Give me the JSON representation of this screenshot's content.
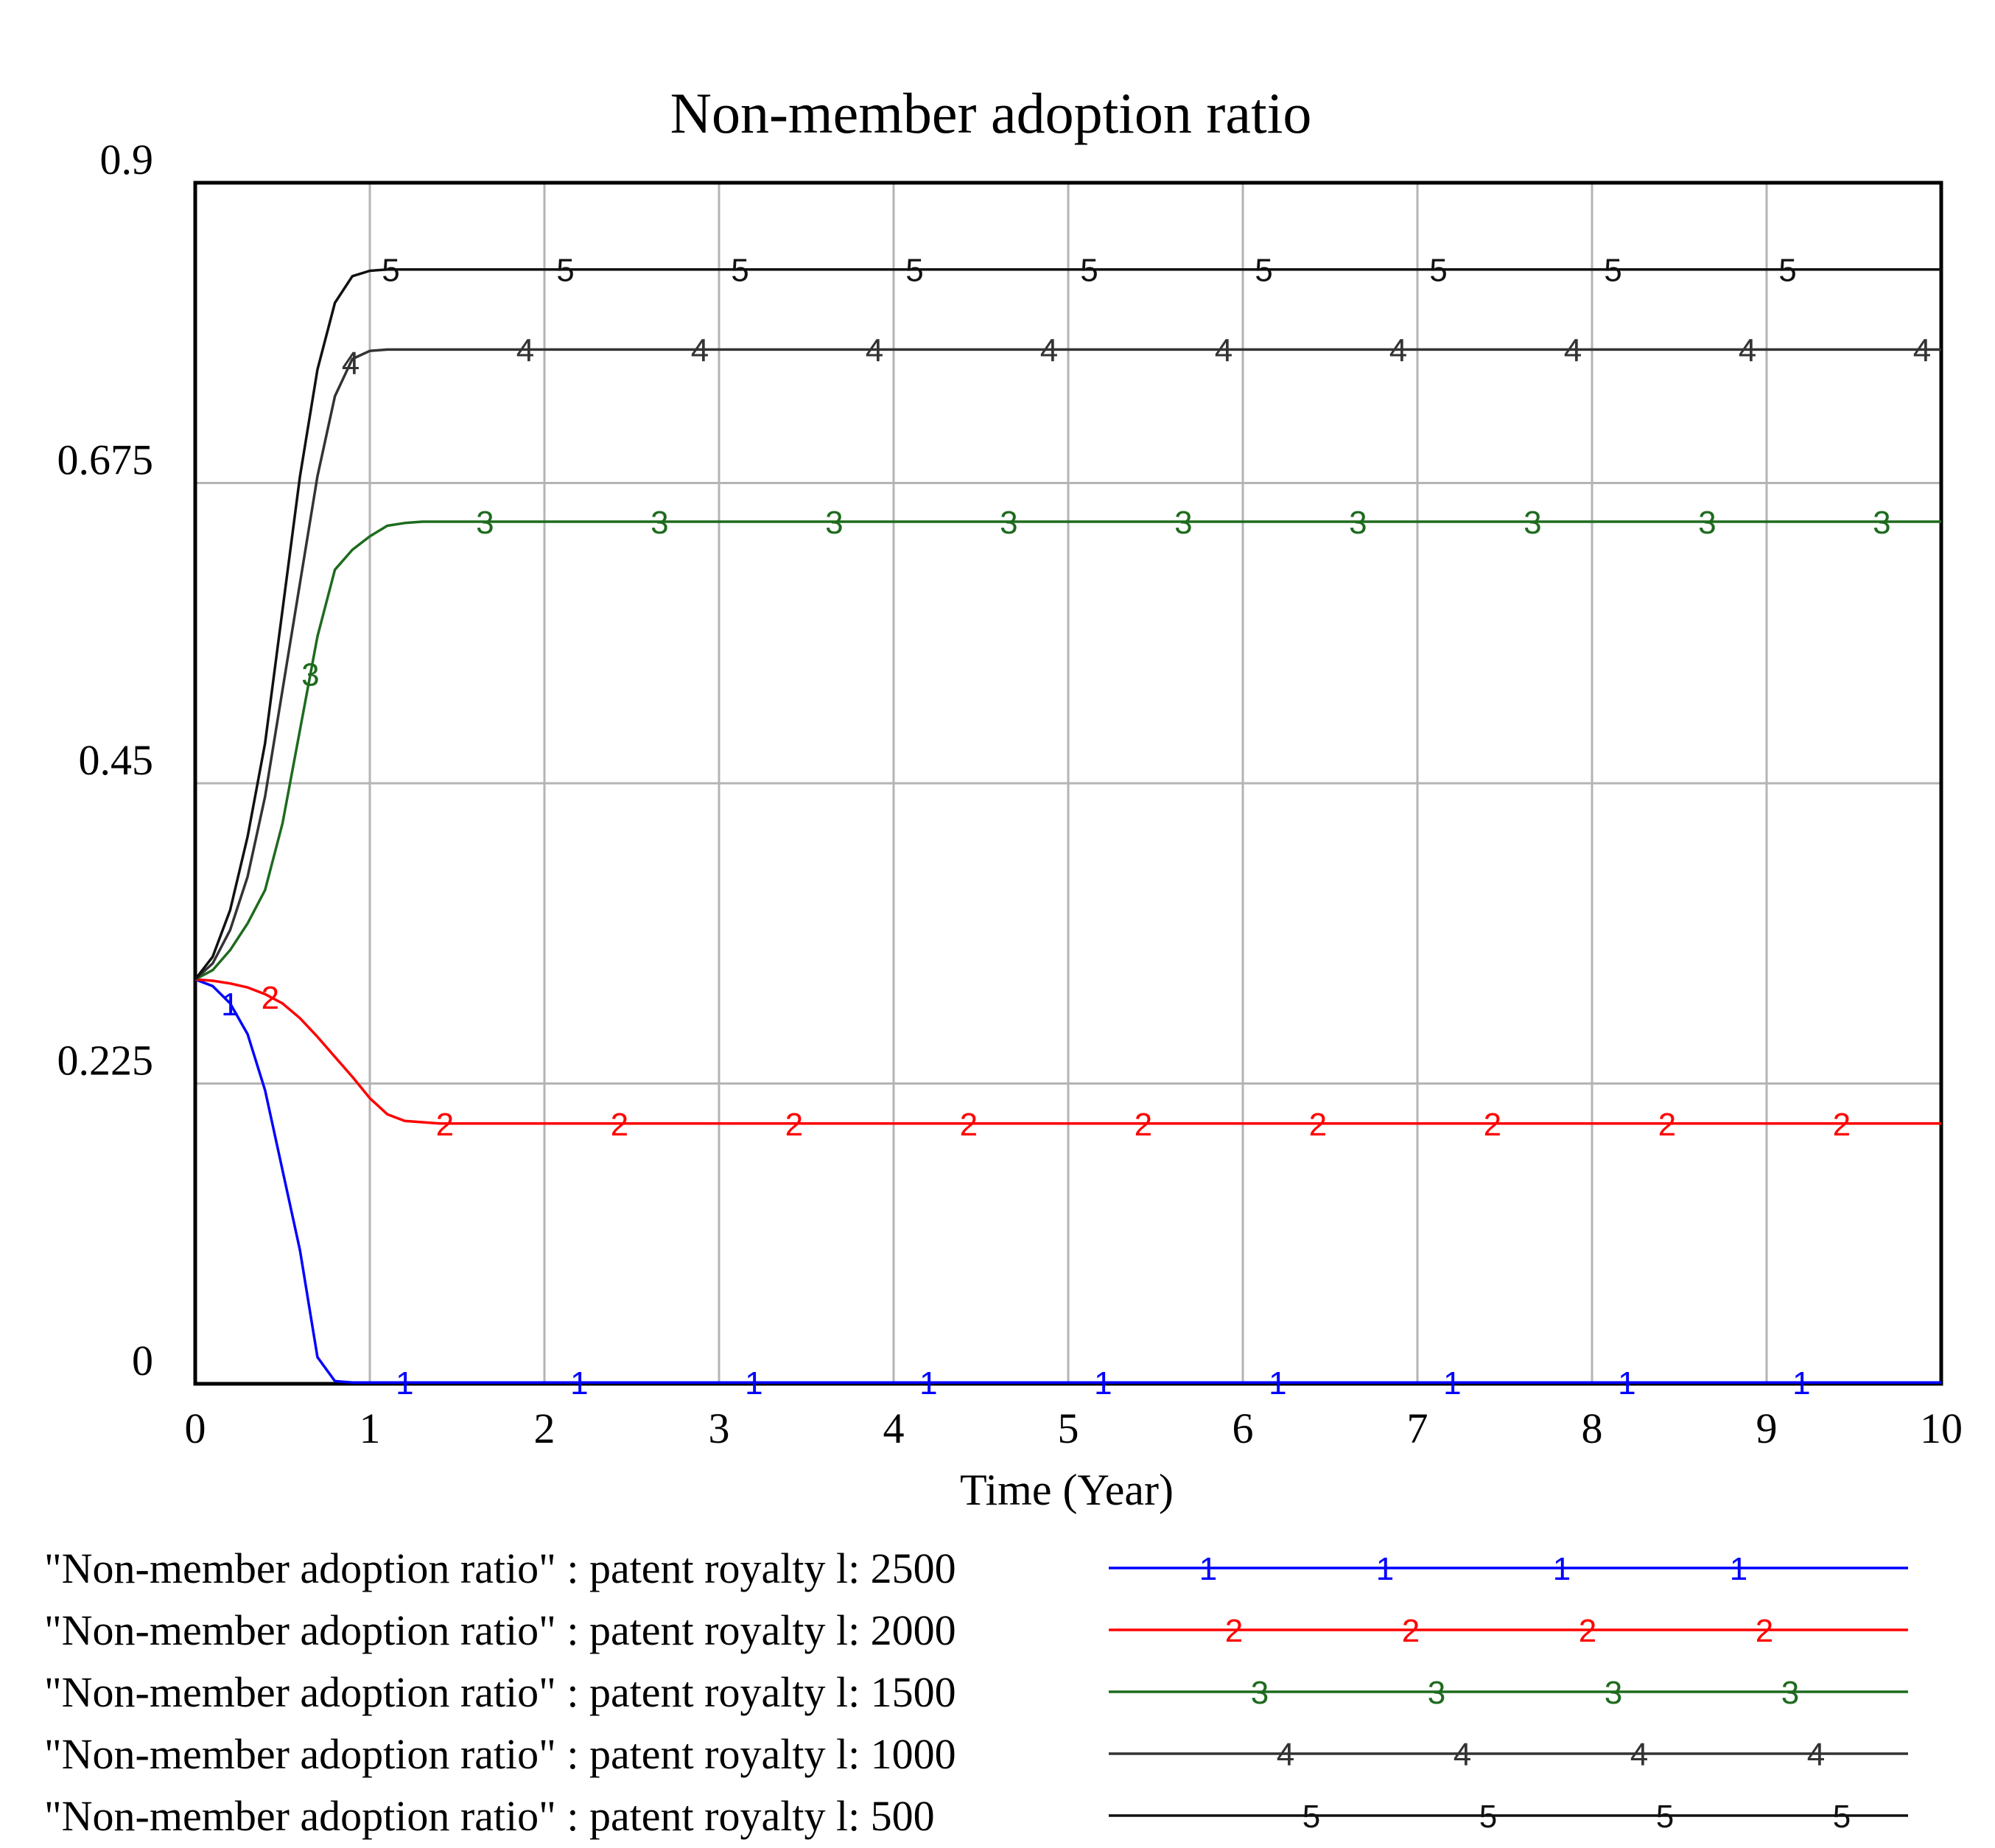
{
  "chart_data": {
    "type": "line",
    "title": "Non-member adoption ratio",
    "xlabel": "Time (Year)",
    "ylabel": "",
    "xlim": [
      0,
      10
    ],
    "ylim": [
      0,
      0.9
    ],
    "x_ticks": [
      "0",
      "1",
      "2",
      "3",
      "4",
      "5",
      "6",
      "7",
      "8",
      "9",
      "10"
    ],
    "y_ticks": [
      "0",
      "0.225",
      "0.45",
      "0.675",
      "0.9"
    ],
    "grid": true,
    "legend_position": "bottom",
    "x": [
      0,
      0.1,
      0.2,
      0.3,
      0.4,
      0.5,
      0.6,
      0.7,
      0.8,
      0.9,
      1,
      1.1,
      1.2,
      1.3,
      1.4,
      1.5,
      2,
      3,
      4,
      5,
      6,
      7,
      8,
      9,
      10
    ],
    "series": [
      {
        "name": "\"Non-member adoption ratio\" : patent royalty l: 2500",
        "marker": "1",
        "color": "#0000ff",
        "values": [
          0.303,
          0.298,
          0.285,
          0.262,
          0.22,
          0.16,
          0.1,
          0.02,
          0.002,
          0.001,
          0.001,
          0.001,
          0.001,
          0.001,
          0.001,
          0.001,
          0.001,
          0.001,
          0.001,
          0.001,
          0.001,
          0.001,
          0.001,
          0.001,
          0.001
        ]
      },
      {
        "name": "\"Non-member adoption ratio\" : patent royalty l: 2000",
        "marker": "2",
        "color": "#ff0000",
        "values": [
          0.303,
          0.302,
          0.3,
          0.297,
          0.292,
          0.285,
          0.274,
          0.26,
          0.245,
          0.23,
          0.214,
          0.202,
          0.197,
          0.196,
          0.195,
          0.195,
          0.195,
          0.195,
          0.195,
          0.195,
          0.195,
          0.195,
          0.195,
          0.195,
          0.195
        ]
      },
      {
        "name": "\"Non-member adoption ratio\" : patent royalty l: 1500",
        "marker": "3",
        "color": "#1e6b1e",
        "values": [
          0.303,
          0.31,
          0.325,
          0.345,
          0.37,
          0.42,
          0.49,
          0.56,
          0.61,
          0.625,
          0.635,
          0.643,
          0.645,
          0.646,
          0.646,
          0.646,
          0.646,
          0.646,
          0.646,
          0.646,
          0.646,
          0.646,
          0.646,
          0.646,
          0.646
        ]
      },
      {
        "name": "\"Non-member adoption ratio\" : patent royalty l: 1000",
        "marker": "4",
        "color": "#333333",
        "values": [
          0.303,
          0.315,
          0.34,
          0.38,
          0.44,
          0.52,
          0.6,
          0.68,
          0.74,
          0.768,
          0.774,
          0.775,
          0.775,
          0.775,
          0.775,
          0.775,
          0.775,
          0.775,
          0.775,
          0.775,
          0.775,
          0.775,
          0.775,
          0.775,
          0.775
        ]
      },
      {
        "name": "\"Non-member adoption ratio\" : patent royalty l: 500",
        "marker": "5",
        "color": "#111111",
        "values": [
          0.303,
          0.32,
          0.355,
          0.41,
          0.48,
          0.58,
          0.68,
          0.76,
          0.81,
          0.83,
          0.834,
          0.835,
          0.835,
          0.835,
          0.835,
          0.835,
          0.835,
          0.835,
          0.835,
          0.835,
          0.835,
          0.835,
          0.835,
          0.835,
          0.835
        ]
      }
    ],
    "legend_labels": [
      "\"Non-member adoption ratio\" : patent royalty l: 2500",
      "\"Non-member adoption ratio\" : patent royalty l: 2000",
      "\"Non-member adoption ratio\" : patent royalty l: 1500",
      "\"Non-member adoption ratio\" : patent royalty l: 1000",
      "\"Non-member adoption ratio\" : patent royalty l: 500"
    ]
  }
}
